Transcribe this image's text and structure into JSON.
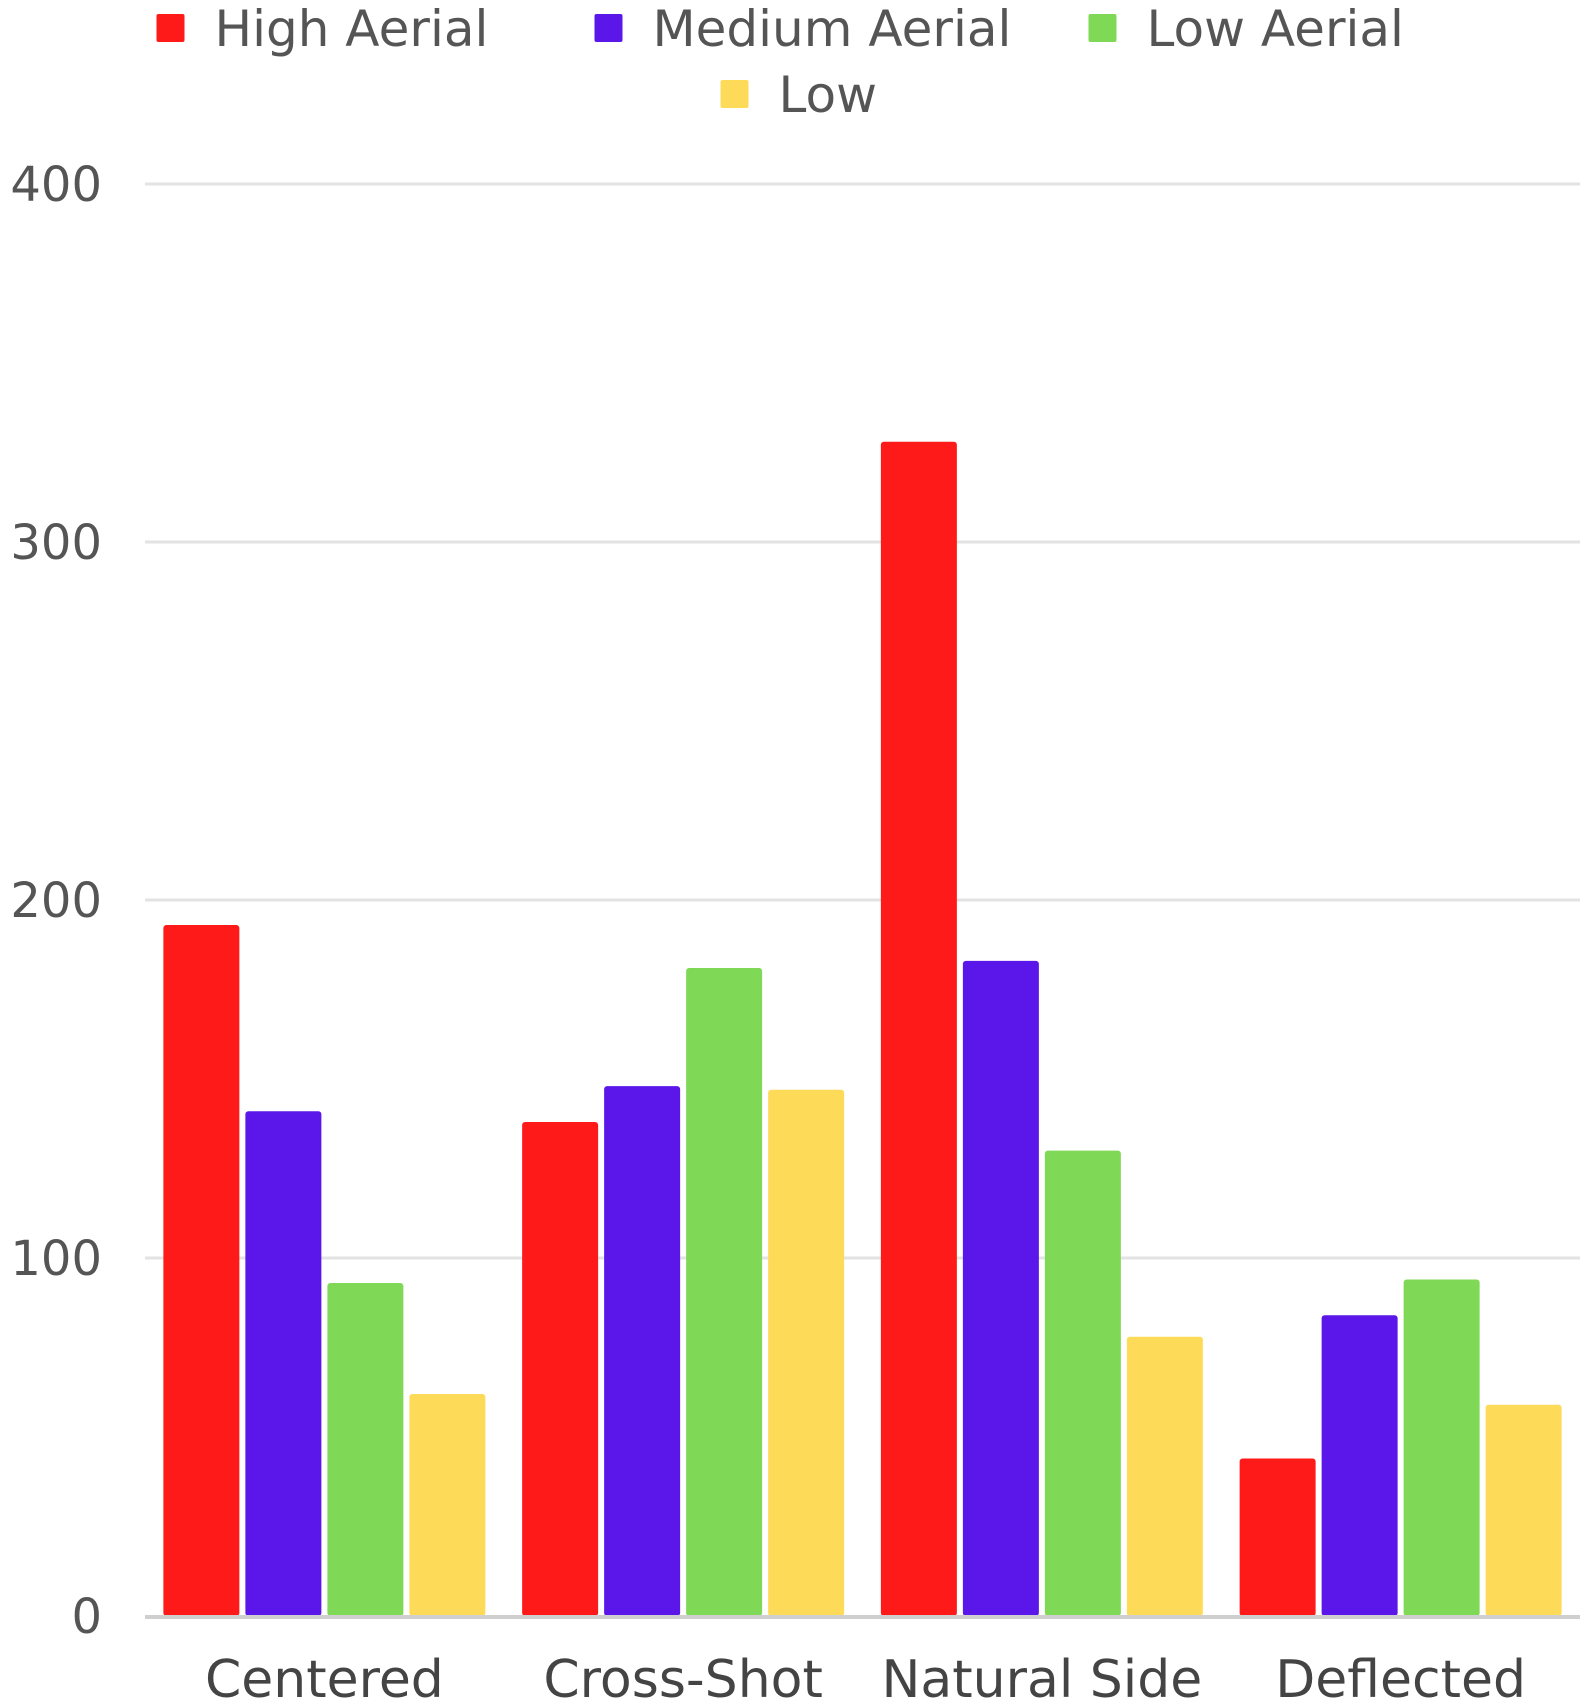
{
  "chart_data": {
    "type": "bar",
    "categories": [
      "Centered",
      "Cross-Shot",
      "Natural Side",
      "Deflected"
    ],
    "series": [
      {
        "name": "High Aerial",
        "color": "#ff1a1a",
        "values": [
          193,
          138,
          328,
          44
        ]
      },
      {
        "name": "Medium Aerial",
        "color": "#5b16e9",
        "values": [
          141,
          148,
          183,
          84
        ]
      },
      {
        "name": "Low Aerial",
        "color": "#7fd957",
        "values": [
          93,
          181,
          130,
          94
        ]
      },
      {
        "name": "Low",
        "color": "#fddb58",
        "values": [
          62,
          147,
          78,
          59
        ]
      }
    ],
    "yticks": [
      "0",
      "100",
      "200",
      "300",
      "400"
    ],
    "ylim": [
      0,
      400
    ],
    "grid": true,
    "legend_position": "top-center"
  }
}
